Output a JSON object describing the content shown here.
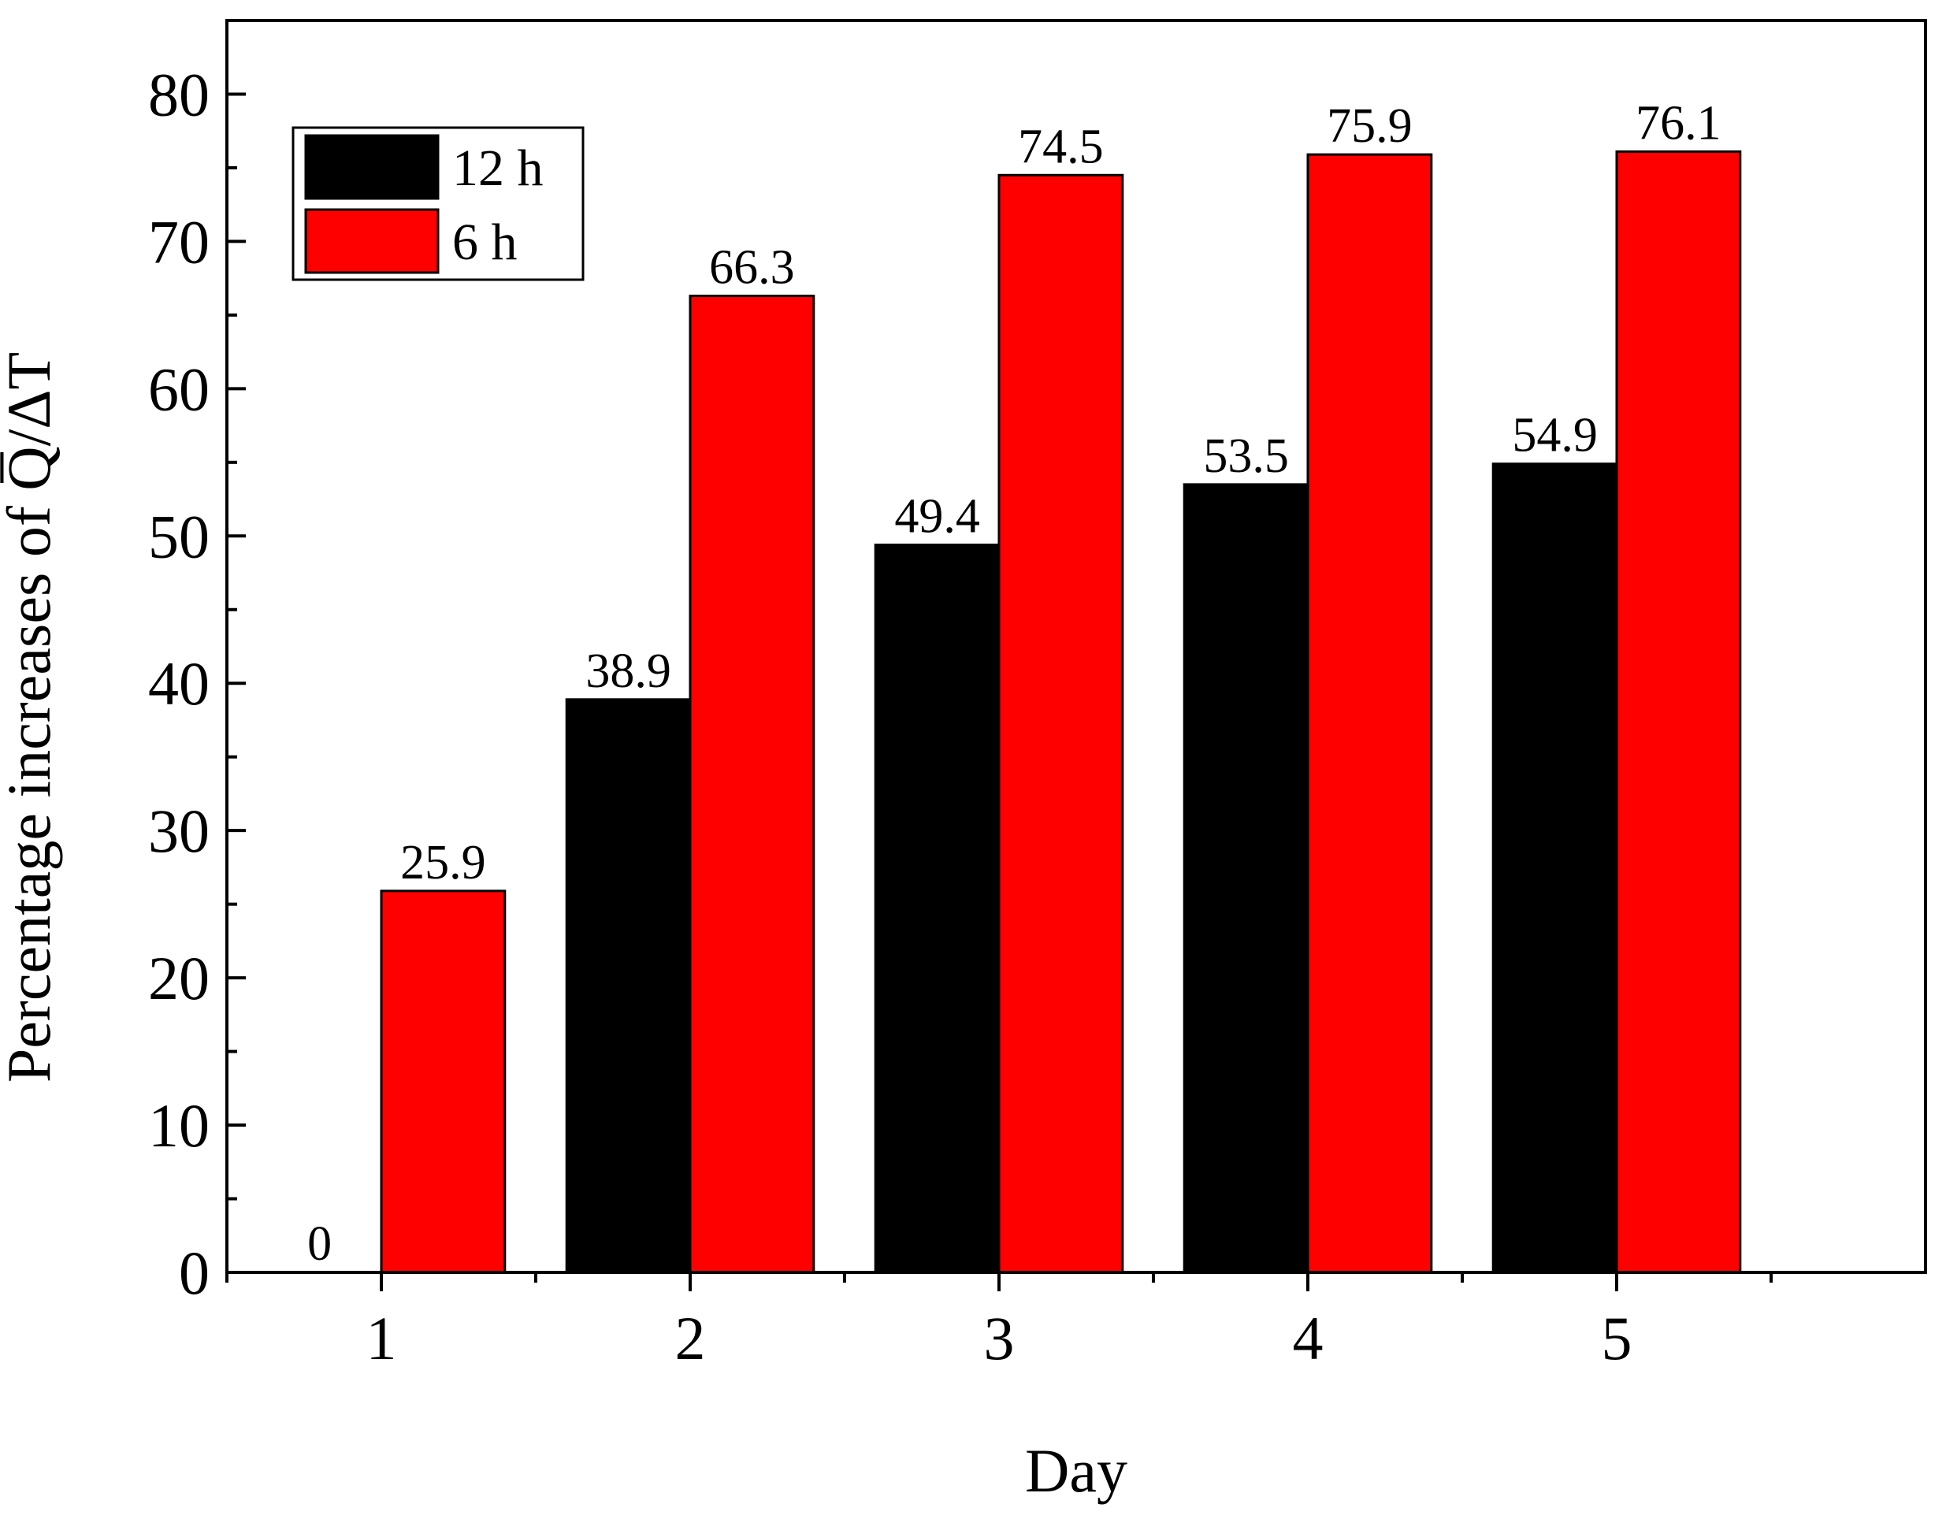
{
  "chart_data": {
    "type": "bar",
    "xlabel": "Day",
    "ylabel": "Percentage increases of Q̅/ΔT",
    "categories": [
      "1",
      "2",
      "3",
      "4",
      "5"
    ],
    "ylim": [
      0,
      85
    ],
    "yticks": [
      "0",
      "10",
      "20",
      "30",
      "40",
      "50",
      "60",
      "70",
      "80"
    ],
    "legend_position": "top-left",
    "grid": false,
    "series": [
      {
        "name": "12 h",
        "color": "#000000",
        "values": [
          0,
          38.9,
          49.4,
          53.5,
          54.9
        ],
        "labels": [
          "0",
          "38.9",
          "49.4",
          "53.5",
          "54.9"
        ]
      },
      {
        "name": "6 h",
        "color": "#ff0000",
        "values": [
          25.9,
          66.3,
          74.5,
          75.9,
          76.1
        ],
        "labels": [
          "25.9",
          "66.3",
          "74.5",
          "75.9",
          "76.1"
        ]
      }
    ]
  }
}
